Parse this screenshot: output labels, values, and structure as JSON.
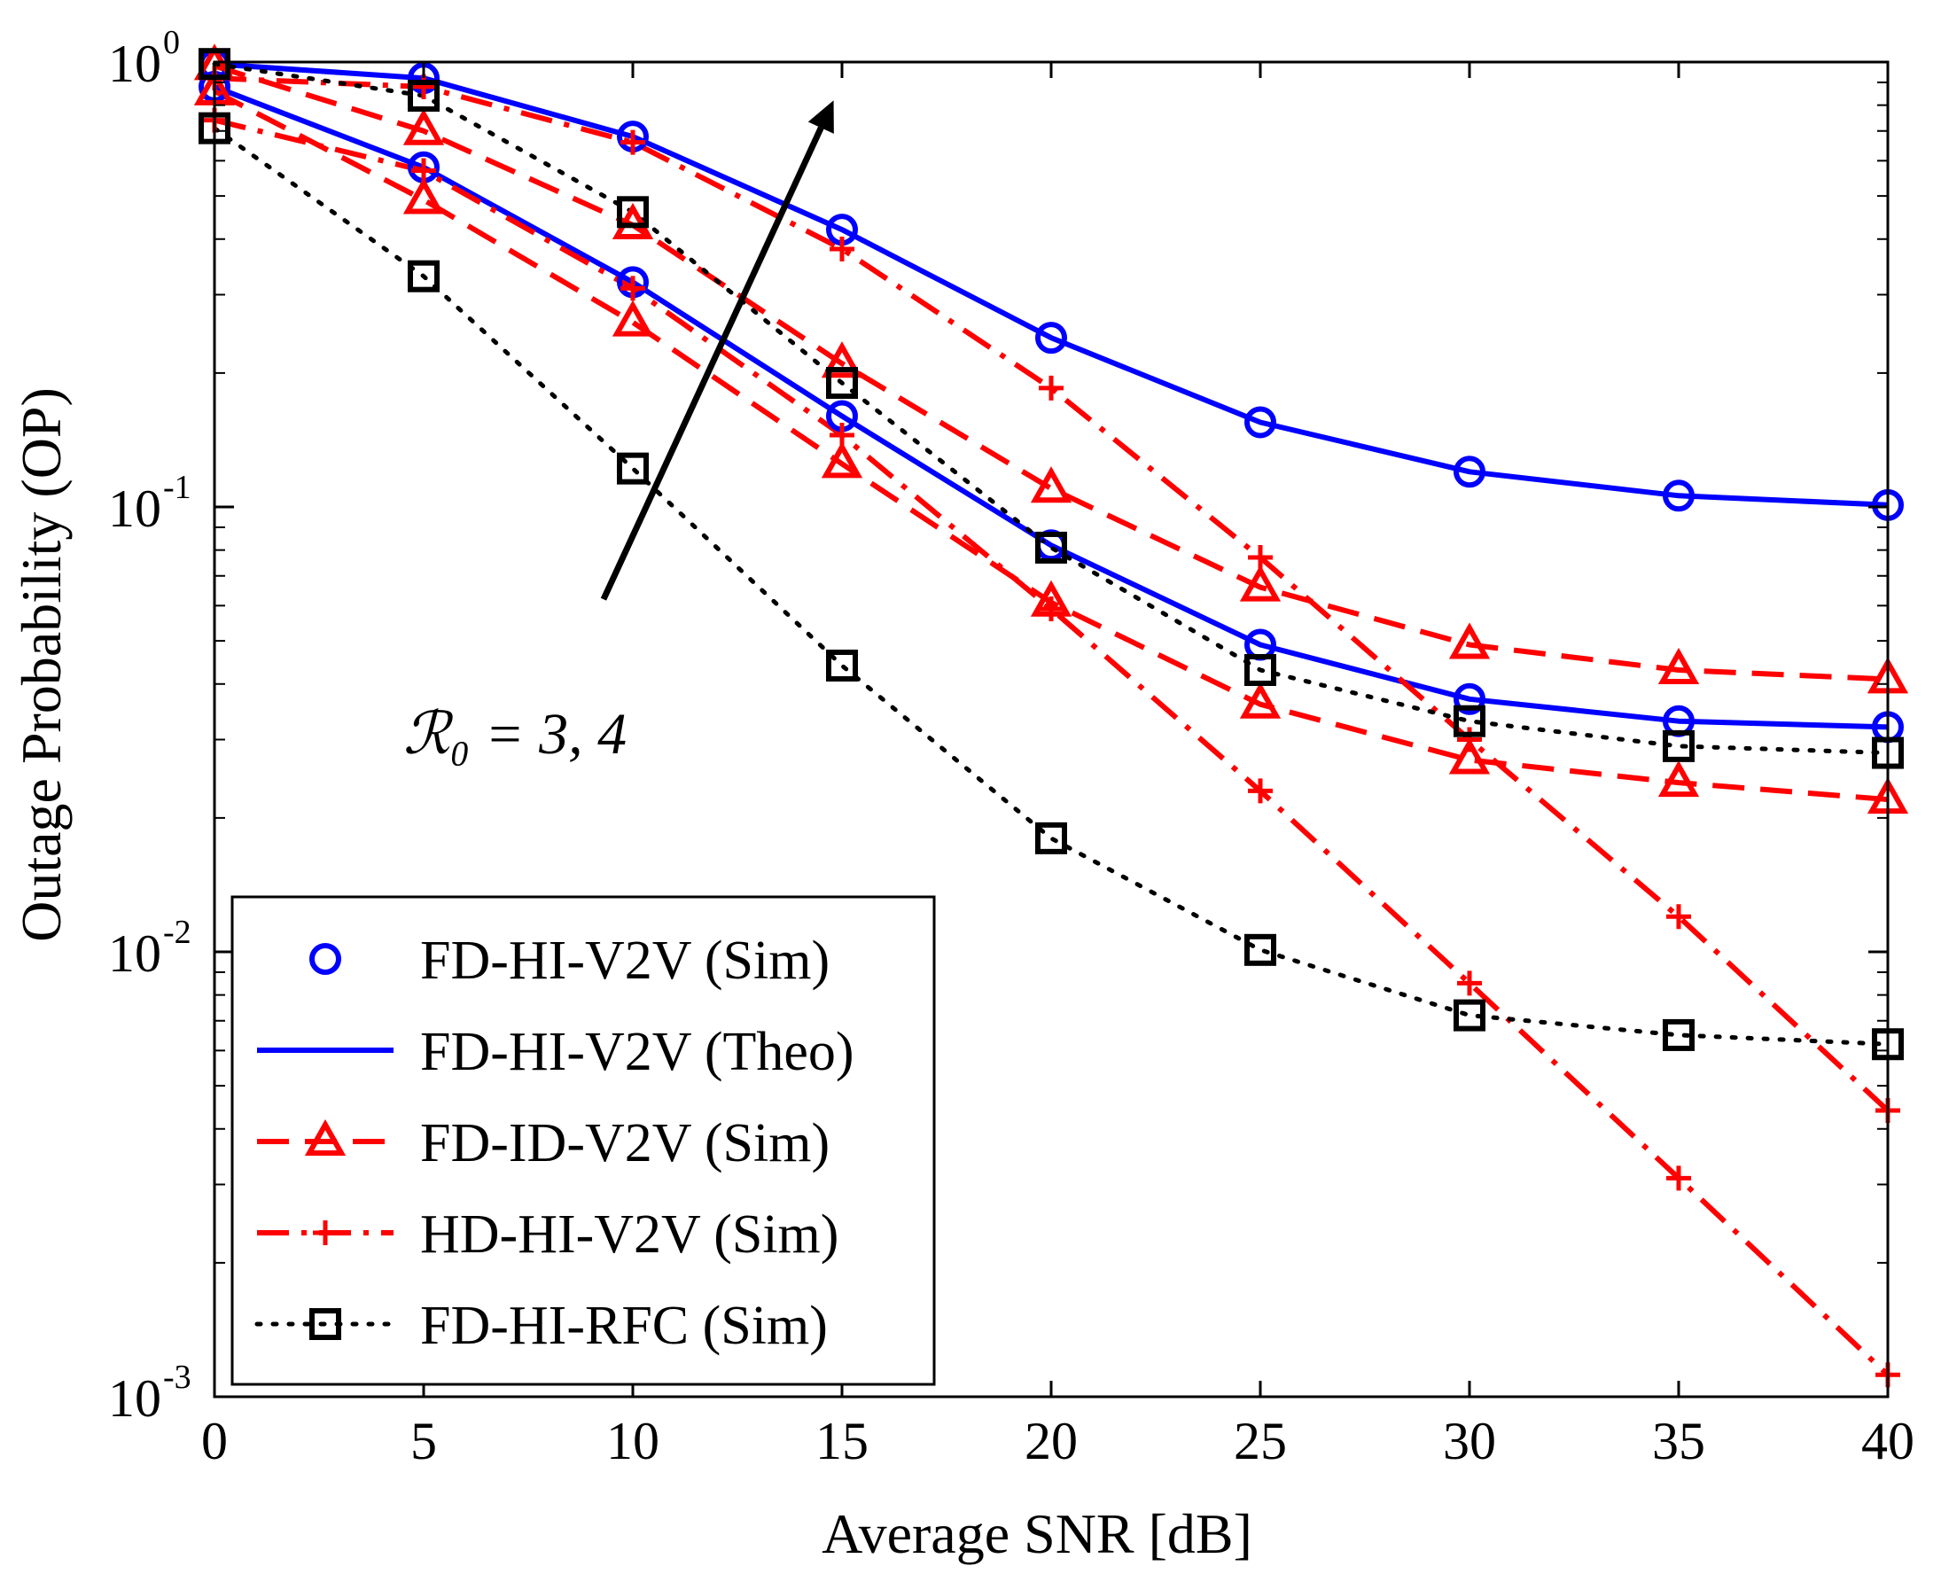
{
  "chart_data": {
    "type": "line",
    "title": "",
    "xlabel": "Average SNR [dB]",
    "ylabel": "Outage Probability (OP)",
    "xlim": [
      0,
      40
    ],
    "ylim": [
      0.001,
      1
    ],
    "yscale": "log",
    "grid": false,
    "x": [
      0,
      5,
      10,
      15,
      20,
      25,
      30,
      35,
      40
    ],
    "xticks": [
      "0",
      "5",
      "10",
      "15",
      "20",
      "25",
      "30",
      "35",
      "40"
    ],
    "yticks": [
      {
        "base": "10",
        "exp": "0",
        "value": 1
      },
      {
        "base": "10",
        "exp": "-1",
        "value": 0.1
      },
      {
        "base": "10",
        "exp": "-2",
        "value": 0.01
      },
      {
        "base": "10",
        "exp": "-3",
        "value": 0.001
      }
    ],
    "colors": {
      "blue": "#0000ff",
      "red": "#ff0000",
      "black": "#000000"
    },
    "legend_position": "bottom-left",
    "legend": [
      {
        "label": "FD-HI-V2V (Sim)",
        "color": "#0000ff",
        "line": "none",
        "marker": "circle"
      },
      {
        "label": "FD-HI-V2V (Theo)",
        "color": "#0000ff",
        "line": "solid",
        "marker": "none"
      },
      {
        "label": "FD-ID-V2V (Sim)",
        "color": "#ff0000",
        "line": "dashed",
        "marker": "triangle"
      },
      {
        "label": "HD-HI-V2V (Sim)",
        "color": "#ff0000",
        "line": "dashdot",
        "marker": "plus"
      },
      {
        "label": "FD-HI-RFC (Sim)",
        "color": "#000000",
        "line": "dotted",
        "marker": "square"
      }
    ],
    "series": [
      {
        "name": "FD-HI-V2V (R0=3)",
        "color": "#0000ff",
        "line": "solid",
        "marker": "circle",
        "values": [
          0.88,
          0.58,
          0.32,
          0.16,
          0.082,
          0.049,
          0.037,
          0.033,
          0.032
        ]
      },
      {
        "name": "FD-HI-V2V (R0=4)",
        "color": "#0000ff",
        "line": "solid",
        "marker": "circle",
        "values": [
          0.99,
          0.92,
          0.68,
          0.42,
          0.24,
          0.155,
          0.12,
          0.106,
          0.101
        ]
      },
      {
        "name": "FD-ID-V2V (R0=3)",
        "color": "#ff0000",
        "line": "dashed",
        "marker": "triangle",
        "values": [
          0.86,
          0.49,
          0.26,
          0.125,
          0.061,
          0.036,
          0.027,
          0.024,
          0.022
        ]
      },
      {
        "name": "FD-ID-V2V (R0=4)",
        "color": "#ff0000",
        "line": "dashed",
        "marker": "triangle",
        "values": [
          0.98,
          0.7,
          0.43,
          0.21,
          0.11,
          0.066,
          0.049,
          0.043,
          0.041
        ]
      },
      {
        "name": "HD-HI-V2V (R0=3)",
        "color": "#ff0000",
        "line": "dashdot",
        "marker": "plus",
        "values": [
          0.74,
          0.57,
          0.31,
          0.145,
          0.059,
          0.023,
          0.0085,
          0.0031,
          0.00112
        ]
      },
      {
        "name": "HD-HI-V2V (R0=4)",
        "color": "#ff0000",
        "line": "dashdot",
        "marker": "plus",
        "values": [
          0.92,
          0.88,
          0.66,
          0.38,
          0.185,
          0.077,
          0.03,
          0.012,
          0.0044
        ]
      },
      {
        "name": "FD-HI-RFC (R0=3)",
        "color": "#000000",
        "line": "dotted",
        "marker": "square",
        "values": [
          0.71,
          0.33,
          0.122,
          0.044,
          0.018,
          0.0101,
          0.0072,
          0.0065,
          0.0062
        ]
      },
      {
        "name": "FD-HI-RFC (R0=4)",
        "color": "#000000",
        "line": "dotted",
        "marker": "square",
        "values": [
          0.99,
          0.84,
          0.46,
          0.19,
          0.081,
          0.043,
          0.033,
          0.029,
          0.028
        ]
      }
    ],
    "annotation": {
      "text": "ℛ₀ = 3, 4",
      "arrow": {
        "from": [
          9.3,
          0.062
        ],
        "to": [
          14.8,
          0.82
        ]
      }
    }
  }
}
